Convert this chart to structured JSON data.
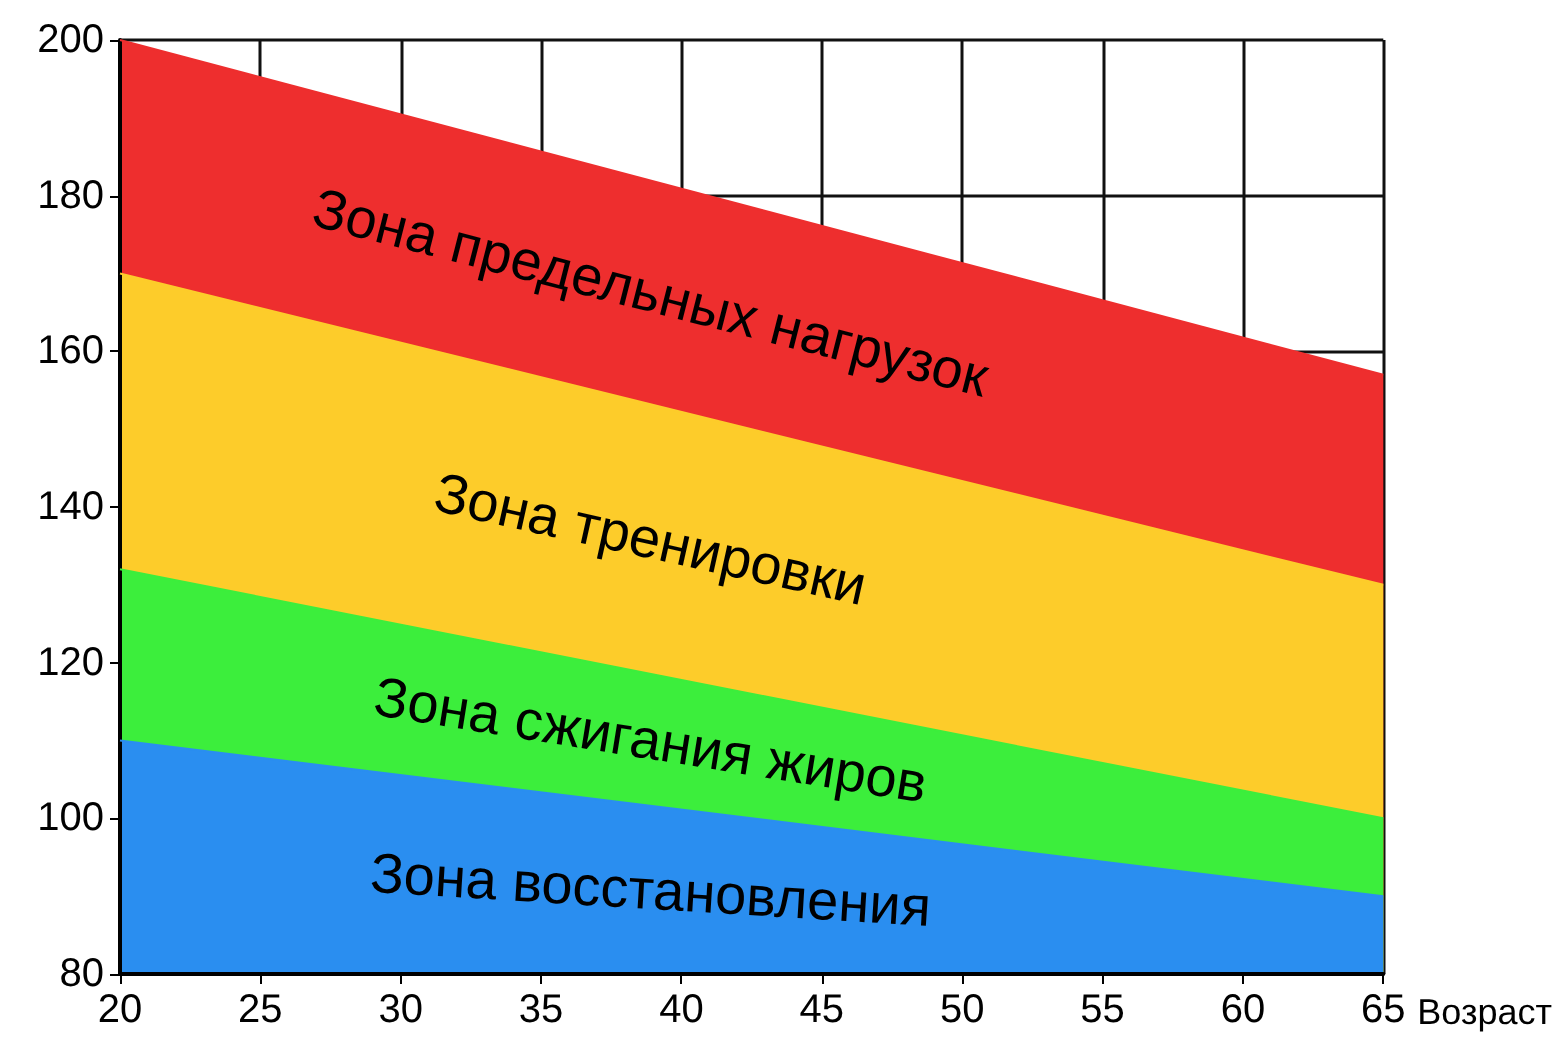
{
  "chart_data": {
    "type": "area",
    "xlabel": "Возраст",
    "x": [
      20,
      65
    ],
    "series": [
      {
        "name": "Зона предельных нагрузок",
        "color": "#ee2e2e",
        "values": [
          200,
          157
        ]
      },
      {
        "name": "Зона тренировки",
        "color": "#fdcc2a",
        "values": [
          170,
          130
        ]
      },
      {
        "name": "Зона сжигания жиров",
        "color": "#3cee3c",
        "values": [
          132,
          100
        ]
      },
      {
        "name": "Зона восстановления",
        "color": "#2a8ef0",
        "values": [
          110,
          90
        ]
      }
    ],
    "xlim": [
      20,
      65
    ],
    "xticks": [
      20,
      25,
      30,
      35,
      40,
      45,
      50,
      55,
      60,
      65
    ],
    "ylim": [
      80,
      200
    ],
    "yticks": [
      80,
      100,
      120,
      140,
      160,
      180,
      200
    ],
    "grid": true,
    "legend": false,
    "marker": "none",
    "line_style": "solid"
  }
}
